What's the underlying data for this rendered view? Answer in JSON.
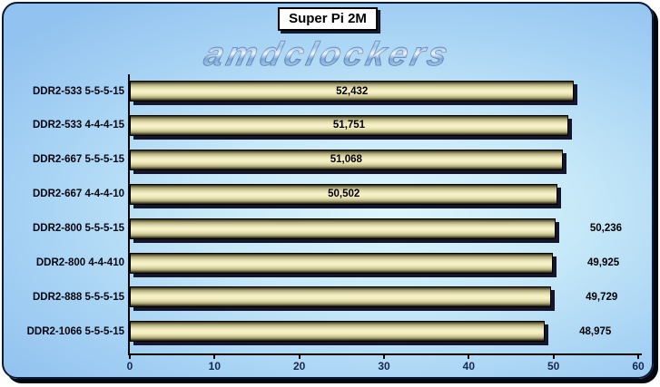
{
  "frame": {
    "border_color": "#0a1a38",
    "shadow_color": "#04070e",
    "background_blue": "#92c2ef",
    "background_highlight": "#dcf6fb"
  },
  "chart_data": {
    "type": "bar",
    "orientation": "horizontal",
    "title": "Super Pi 2M",
    "watermark": "amdclockers",
    "categories": [
      "DDR2-533 5-5-5-15",
      "DDR2-533 4-4-4-15",
      "DDR2-667 5-5-5-15",
      "DDR2-667 4-4-4-10",
      "DDR2-800 5-5-5-15",
      "DDR2-800 4-4-410",
      "DDR2-888 5-5-5-15",
      "DDR2-1066 5-5-5-15"
    ],
    "values": [
      52.432,
      51.751,
      51.068,
      50.502,
      50.236,
      49.925,
      49.729,
      48.975
    ],
    "value_labels": [
      "52,432",
      "51,751",
      "51,068",
      "50,502",
      "50,236",
      "49,925",
      "49,729",
      "48,975"
    ],
    "label_inside": [
      true,
      true,
      true,
      true,
      false,
      false,
      false,
      false
    ],
    "xlim": [
      0,
      60
    ],
    "xticks": [
      "0",
      "10",
      "20",
      "30",
      "40",
      "50",
      "60"
    ],
    "grid": false,
    "legend_position": "none",
    "bar_fill_center": "#f5f0c6",
    "bar_fill_edge": "#23220f",
    "bar_border": "#000000",
    "bar_shadow": "#15152b",
    "axis_color": "#000000",
    "tick_label_color": "#16294f",
    "category_label_color": "#05050f",
    "value_label_color": "#000000"
  }
}
